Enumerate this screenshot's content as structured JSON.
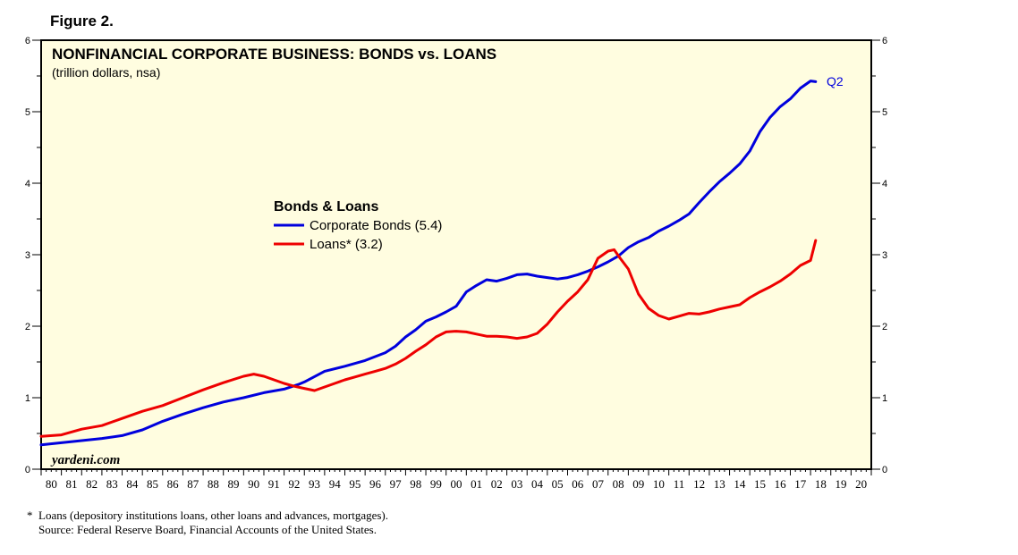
{
  "figure_label": "Figure 2.",
  "footnotes": {
    "note": "*  Loans (depository institutions loans, other loans and advances, mortgages).",
    "source": "    Source: Federal Reserve Board, Financial Accounts of the United States."
  },
  "chart_data": {
    "type": "line",
    "title": "NONFINANCIAL CORPORATE BUSINESS: BONDS vs. LOANS",
    "subtitle": "(trillion dollars, nsa)",
    "watermark": "yardeni.com",
    "legend_title": "Bonds & Loans",
    "legend_position": "center-left",
    "end_label": "Q2",
    "xlim": [
      1980,
      2021
    ],
    "ylim": [
      0,
      6
    ],
    "y_ticks": [
      "0",
      "1",
      "2",
      "3",
      "4",
      "5",
      "6"
    ],
    "x_tick_labels": [
      "80",
      "81",
      "82",
      "83",
      "84",
      "85",
      "86",
      "87",
      "88",
      "89",
      "90",
      "91",
      "92",
      "93",
      "94",
      "95",
      "96",
      "97",
      "98",
      "99",
      "00",
      "01",
      "02",
      "03",
      "04",
      "05",
      "06",
      "07",
      "08",
      "09",
      "10",
      "11",
      "12",
      "13",
      "14",
      "15",
      "16",
      "17",
      "18",
      "19",
      "20"
    ],
    "background_color": "#fffde0",
    "grid": false,
    "series": [
      {
        "name": "Corporate Bonds (5.4)",
        "color": "#0000dd",
        "points": [
          [
            1980.0,
            0.34
          ],
          [
            1981.0,
            0.37
          ],
          [
            1982.0,
            0.4
          ],
          [
            1983.0,
            0.43
          ],
          [
            1984.0,
            0.47
          ],
          [
            1985.0,
            0.55
          ],
          [
            1986.0,
            0.67
          ],
          [
            1987.0,
            0.77
          ],
          [
            1988.0,
            0.86
          ],
          [
            1989.0,
            0.94
          ],
          [
            1990.0,
            1.0
          ],
          [
            1991.0,
            1.07
          ],
          [
            1992.0,
            1.12
          ],
          [
            1992.75,
            1.19
          ],
          [
            1993.0,
            1.22
          ],
          [
            1994.0,
            1.37
          ],
          [
            1995.0,
            1.44
          ],
          [
            1996.0,
            1.52
          ],
          [
            1997.0,
            1.63
          ],
          [
            1997.5,
            1.72
          ],
          [
            1998.0,
            1.85
          ],
          [
            1998.5,
            1.95
          ],
          [
            1999.0,
            2.07
          ],
          [
            1999.5,
            2.13
          ],
          [
            2000.0,
            2.2
          ],
          [
            2000.5,
            2.28
          ],
          [
            2001.0,
            2.48
          ],
          [
            2001.5,
            2.57
          ],
          [
            2002.0,
            2.65
          ],
          [
            2002.5,
            2.63
          ],
          [
            2003.0,
            2.67
          ],
          [
            2003.5,
            2.72
          ],
          [
            2004.0,
            2.73
          ],
          [
            2004.5,
            2.7
          ],
          [
            2005.0,
            2.68
          ],
          [
            2005.5,
            2.66
          ],
          [
            2006.0,
            2.68
          ],
          [
            2006.5,
            2.72
          ],
          [
            2007.0,
            2.77
          ],
          [
            2007.5,
            2.83
          ],
          [
            2008.0,
            2.9
          ],
          [
            2008.5,
            2.98
          ],
          [
            2009.0,
            3.1
          ],
          [
            2009.5,
            3.18
          ],
          [
            2010.0,
            3.24
          ],
          [
            2010.5,
            3.33
          ],
          [
            2011.0,
            3.4
          ],
          [
            2011.5,
            3.48
          ],
          [
            2012.0,
            3.57
          ],
          [
            2012.5,
            3.73
          ],
          [
            2013.0,
            3.88
          ],
          [
            2013.5,
            4.02
          ],
          [
            2014.0,
            4.14
          ],
          [
            2014.5,
            4.27
          ],
          [
            2015.0,
            4.45
          ],
          [
            2015.5,
            4.72
          ],
          [
            2016.0,
            4.92
          ],
          [
            2016.5,
            5.07
          ],
          [
            2017.0,
            5.18
          ],
          [
            2017.5,
            5.33
          ],
          [
            2018.0,
            5.43
          ],
          [
            2018.25,
            5.42
          ]
        ]
      },
      {
        "name": "Loans* (3.2)",
        "color": "#ee0000",
        "points": [
          [
            1980.0,
            0.46
          ],
          [
            1981.0,
            0.48
          ],
          [
            1982.0,
            0.56
          ],
          [
            1983.0,
            0.61
          ],
          [
            1984.0,
            0.71
          ],
          [
            1985.0,
            0.81
          ],
          [
            1986.0,
            0.89
          ],
          [
            1987.0,
            1.0
          ],
          [
            1988.0,
            1.11
          ],
          [
            1989.0,
            1.21
          ],
          [
            1990.0,
            1.3
          ],
          [
            1990.5,
            1.33
          ],
          [
            1991.0,
            1.3
          ],
          [
            1991.5,
            1.25
          ],
          [
            1992.0,
            1.2
          ],
          [
            1992.5,
            1.16
          ],
          [
            1993.0,
            1.13
          ],
          [
            1993.5,
            1.1
          ],
          [
            1994.0,
            1.15
          ],
          [
            1994.5,
            1.2
          ],
          [
            1995.0,
            1.25
          ],
          [
            1995.5,
            1.29
          ],
          [
            1996.0,
            1.33
          ],
          [
            1996.5,
            1.37
          ],
          [
            1997.0,
            1.41
          ],
          [
            1997.5,
            1.47
          ],
          [
            1998.0,
            1.55
          ],
          [
            1998.5,
            1.65
          ],
          [
            1999.0,
            1.74
          ],
          [
            1999.5,
            1.85
          ],
          [
            2000.0,
            1.92
          ],
          [
            2000.5,
            1.93
          ],
          [
            2001.0,
            1.92
          ],
          [
            2001.5,
            1.89
          ],
          [
            2002.0,
            1.86
          ],
          [
            2002.5,
            1.86
          ],
          [
            2003.0,
            1.85
          ],
          [
            2003.5,
            1.83
          ],
          [
            2004.0,
            1.85
          ],
          [
            2004.5,
            1.9
          ],
          [
            2005.0,
            2.03
          ],
          [
            2005.5,
            2.2
          ],
          [
            2006.0,
            2.35
          ],
          [
            2006.5,
            2.48
          ],
          [
            2007.0,
            2.65
          ],
          [
            2007.5,
            2.95
          ],
          [
            2008.0,
            3.05
          ],
          [
            2008.3,
            3.07
          ],
          [
            2008.6,
            2.95
          ],
          [
            2009.0,
            2.8
          ],
          [
            2009.5,
            2.45
          ],
          [
            2010.0,
            2.25
          ],
          [
            2010.5,
            2.15
          ],
          [
            2011.0,
            2.1
          ],
          [
            2011.5,
            2.14
          ],
          [
            2012.0,
            2.18
          ],
          [
            2012.5,
            2.17
          ],
          [
            2013.0,
            2.2
          ],
          [
            2013.5,
            2.24
          ],
          [
            2014.0,
            2.27
          ],
          [
            2014.5,
            2.3
          ],
          [
            2015.0,
            2.4
          ],
          [
            2015.5,
            2.48
          ],
          [
            2016.0,
            2.55
          ],
          [
            2016.5,
            2.63
          ],
          [
            2017.0,
            2.73
          ],
          [
            2017.5,
            2.85
          ],
          [
            2018.0,
            2.92
          ],
          [
            2018.25,
            3.2
          ]
        ]
      }
    ]
  }
}
